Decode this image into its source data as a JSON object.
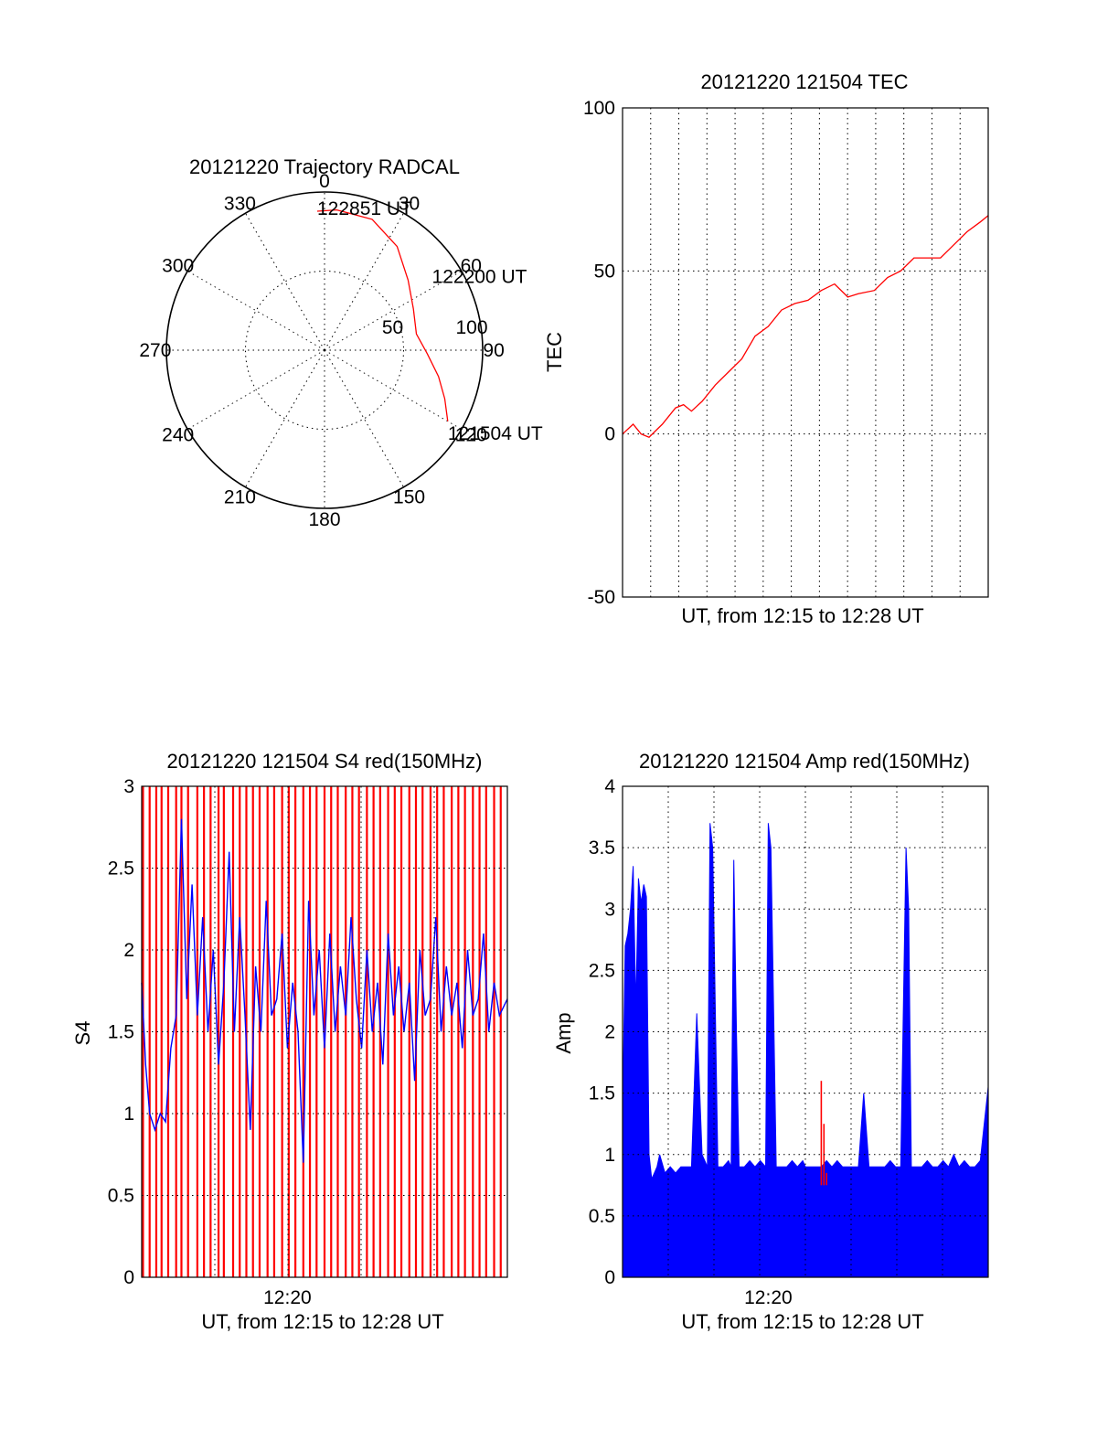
{
  "colors": {
    "red_channel": "#ff0000",
    "blue_channel": "#0000ff",
    "axes": "#000000",
    "background": "#ffffff"
  },
  "chart_data": [
    {
      "type": "polar",
      "title": "20121220 Trajectory RADCAL",
      "azimuth_ticks": [
        "0",
        "30",
        "60",
        "90",
        "120",
        "150",
        "180",
        "210",
        "240",
        "270",
        "300",
        "330"
      ],
      "radial_ticks": [
        "50",
        "100"
      ],
      "grid": true,
      "series": [
        {
          "color": "#ff0000",
          "points": [
            {
              "az": 120,
              "r": 90
            },
            {
              "az": 112,
              "r": 82
            },
            {
              "az": 103,
              "r": 74
            },
            {
              "az": 92,
              "r": 65
            },
            {
              "az": 80,
              "r": 59
            },
            {
              "az": 65,
              "r": 62
            },
            {
              "az": 50,
              "r": 69
            },
            {
              "az": 35,
              "r": 80
            },
            {
              "az": 20,
              "r": 88
            },
            {
              "az": 5,
              "r": 89
            },
            {
              "az": 357,
              "r": 88
            }
          ]
        }
      ],
      "annotations": [
        {
          "text": "122851 UT",
          "az": 0,
          "r": 88
        },
        {
          "text": "122200 UT",
          "az": 70,
          "r": 60
        },
        {
          "text": "121504 UT",
          "az": 120,
          "r": 90
        }
      ]
    },
    {
      "type": "line",
      "title": "20121220 121504 TEC",
      "xlabel": "UT, from 12:15 to 12:28 UT",
      "ylabel": "TEC",
      "ylim": [
        -50,
        100
      ],
      "yticks": [
        "-50",
        "0",
        "50",
        "100"
      ],
      "xlim_minutes": [
        0,
        13.8
      ],
      "grid": true,
      "series": [
        {
          "color": "#ff0000",
          "x": [
            0,
            0.4,
            0.7,
            1.0,
            1.5,
            2.0,
            2.3,
            2.6,
            3.0,
            3.5,
            4.0,
            4.5,
            5.0,
            5.5,
            6.0,
            6.5,
            7.0,
            7.5,
            8.0,
            8.5,
            8.9,
            9.5,
            10.0,
            10.5,
            11.0,
            11.5,
            12.0,
            12.5,
            13.0,
            13.5,
            13.8
          ],
          "y": [
            0,
            3,
            0,
            -1,
            3,
            8,
            9,
            7,
            10,
            15,
            19,
            23,
            30,
            33,
            38,
            40,
            41,
            44,
            46,
            42,
            43,
            44,
            48,
            50,
            54,
            54,
            54,
            58,
            62,
            65,
            67
          ]
        }
      ]
    },
    {
      "type": "line",
      "title": "20121220 121504 S4 red(150MHz)",
      "xlabel": "UT, from 12:15 to 12:28 UT",
      "ylabel": "S4",
      "ylim": [
        0,
        3
      ],
      "yticks": [
        "0",
        "0.5",
        "1",
        "1.5",
        "2",
        "2.5",
        "3"
      ],
      "xticks": [
        "12:20"
      ],
      "xlim_minutes": [
        0,
        13.8
      ],
      "grid": true,
      "series": [
        {
          "color": "#ff0000",
          "type": "bars",
          "description_free": true,
          "x": [
            0.05,
            0.3,
            0.55,
            0.75,
            1.0,
            1.3,
            1.5,
            1.75,
            2.1,
            2.35,
            2.6,
            2.9,
            3.1,
            3.45,
            3.7,
            3.95,
            4.2,
            4.45,
            4.75,
            5.0,
            5.3,
            5.55,
            5.8,
            6.1,
            6.35,
            6.6,
            6.9,
            7.15,
            7.4,
            7.7,
            7.95,
            8.2,
            8.5,
            8.75,
            9.0,
            9.3,
            9.55,
            9.8,
            10.1,
            10.35,
            10.6,
            10.9,
            11.15,
            11.4,
            11.7,
            11.95,
            12.2,
            12.5,
            12.75,
            13.0,
            13.3,
            13.55
          ],
          "y": [
            3,
            3,
            3,
            3,
            3,
            3,
            3,
            3,
            3,
            3,
            3,
            3,
            3,
            3,
            3,
            3,
            3,
            3,
            3,
            3,
            3,
            3,
            3,
            3,
            3,
            3,
            3,
            3,
            3,
            3,
            3,
            3,
            3,
            3,
            3,
            3,
            3,
            3,
            3,
            3,
            3,
            3,
            3,
            3,
            3,
            3,
            3,
            3,
            3,
            3,
            3,
            3
          ]
        },
        {
          "color": "#0000ff",
          "x": [
            0,
            0.15,
            0.3,
            0.5,
            0.7,
            0.9,
            1.1,
            1.3,
            1.5,
            1.7,
            1.9,
            2.1,
            2.3,
            2.5,
            2.7,
            2.9,
            3.1,
            3.3,
            3.5,
            3.7,
            3.9,
            4.1,
            4.3,
            4.5,
            4.7,
            4.9,
            5.1,
            5.3,
            5.5,
            5.7,
            5.9,
            6.1,
            6.3,
            6.5,
            6.7,
            6.9,
            7.1,
            7.3,
            7.5,
            7.7,
            7.9,
            8.1,
            8.3,
            8.5,
            8.7,
            8.9,
            9.1,
            9.3,
            9.5,
            9.7,
            9.9,
            10.1,
            10.3,
            10.5,
            10.7,
            10.9,
            11.1,
            11.3,
            11.5,
            11.7,
            11.9,
            12.1,
            12.3,
            12.5,
            12.7,
            12.9,
            13.1,
            13.3,
            13.5,
            13.8
          ],
          "y": [
            1.8,
            1.3,
            1.0,
            0.9,
            1.0,
            0.95,
            1.4,
            1.6,
            2.8,
            1.7,
            2.4,
            1.6,
            2.2,
            1.5,
            2.0,
            1.3,
            1.8,
            2.6,
            1.5,
            2.2,
            1.6,
            0.9,
            1.9,
            1.5,
            2.3,
            1.6,
            1.7,
            2.1,
            1.4,
            1.8,
            1.5,
            0.7,
            2.3,
            1.6,
            2.0,
            1.4,
            2.1,
            1.5,
            1.9,
            1.6,
            2.2,
            1.7,
            1.4,
            2.0,
            1.5,
            1.8,
            1.3,
            2.1,
            1.6,
            1.9,
            1.5,
            1.8,
            1.2,
            2.0,
            1.6,
            1.7,
            2.2,
            1.5,
            1.9,
            1.6,
            1.8,
            1.4,
            2.0,
            1.6,
            1.7,
            2.1,
            1.5,
            1.8,
            1.6,
            1.7
          ]
        }
      ]
    },
    {
      "type": "line",
      "title": "20121220 121504 Amp red(150MHz)",
      "xlabel": "UT, from 12:15 to 12:28 UT",
      "ylabel": "Amp",
      "ylim": [
        0,
        4
      ],
      "yticks": [
        "0",
        "0.5",
        "1",
        "1.5",
        "2",
        "2.5",
        "3",
        "3.5",
        "4"
      ],
      "xticks": [
        "12:20"
      ],
      "xlim_minutes": [
        0,
        13.8
      ],
      "grid": true,
      "series": [
        {
          "color": "#0000ff",
          "type": "fill",
          "x": [
            0,
            0.1,
            0.2,
            0.3,
            0.4,
            0.5,
            0.6,
            0.7,
            0.8,
            0.9,
            1.0,
            1.1,
            1.2,
            1.3,
            1.4,
            1.6,
            1.8,
            2.0,
            2.2,
            2.4,
            2.6,
            2.8,
            3.0,
            3.1,
            3.2,
            3.3,
            3.4,
            3.6,
            3.8,
            4.0,
            4.1,
            4.2,
            4.3,
            4.4,
            4.6,
            4.8,
            5.0,
            5.2,
            5.4,
            5.5,
            5.6,
            5.8,
            6.0,
            6.2,
            6.4,
            6.6,
            6.8,
            6.9,
            7.0,
            7.1,
            7.3,
            7.5,
            7.7,
            7.9,
            8.1,
            8.3,
            8.5,
            8.7,
            8.9,
            9.1,
            9.3,
            9.5,
            9.7,
            9.9,
            10.1,
            10.3,
            10.5,
            10.7,
            10.8,
            10.9,
            11.1,
            11.3,
            11.5,
            11.7,
            11.9,
            12.1,
            12.3,
            12.5,
            12.7,
            12.9,
            13.1,
            13.3,
            13.5,
            13.8
          ],
          "y": [
            1.3,
            2.7,
            2.8,
            3.0,
            3.35,
            2.2,
            3.25,
            3.05,
            3.2,
            3.1,
            1.0,
            0.8,
            0.85,
            0.9,
            1.0,
            0.85,
            0.9,
            0.85,
            0.9,
            0.9,
            0.9,
            2.15,
            1.0,
            0.95,
            0.9,
            3.7,
            3.5,
            0.9,
            0.9,
            0.95,
            0.9,
            3.4,
            2.0,
            0.9,
            0.9,
            0.95,
            0.9,
            0.95,
            0.9,
            3.7,
            3.5,
            0.9,
            0.9,
            0.9,
            0.95,
            0.9,
            0.95,
            0.9,
            0.9,
            0.9,
            0.9,
            0.9,
            0.95,
            0.9,
            0.95,
            0.9,
            0.9,
            0.9,
            0.9,
            1.5,
            0.9,
            0.9,
            0.9,
            0.9,
            0.95,
            0.9,
            0.9,
            3.5,
            3.0,
            0.9,
            0.9,
            0.9,
            0.95,
            0.9,
            0.9,
            0.95,
            0.9,
            1.0,
            0.9,
            0.95,
            0.9,
            0.9,
            0.95,
            1.55
          ]
        },
        {
          "color": "#ff0000",
          "type": "bars",
          "x": [
            7.5,
            7.6,
            7.7
          ],
          "y": [
            1.6,
            1.25,
            0.85
          ]
        }
      ]
    }
  ]
}
